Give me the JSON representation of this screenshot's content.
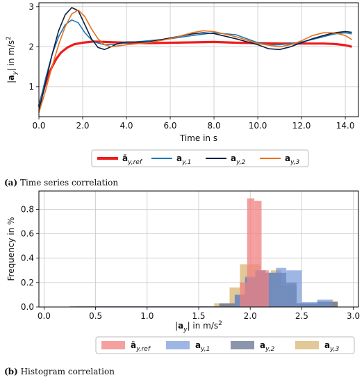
{
  "chart_data": [
    {
      "type": "line",
      "caption_label": "(a)",
      "caption_text": "Time series correlation",
      "xlabel": "Time in s",
      "ylabel": "|a_y| in m/s^2",
      "xlim": [
        0.0,
        14.6
      ],
      "ylim": [
        0.25,
        3.1
      ],
      "xticks": [
        "0.0",
        "2.0",
        "4.0",
        "6.0",
        "8.0",
        "10.0",
        "12.0",
        "14.0"
      ],
      "yticks": [
        "1",
        "2",
        "3"
      ],
      "grid": true,
      "legend_position": "below",
      "series": [
        {
          "name": "ā_y,ref",
          "color": "#ee1c1c",
          "x": [
            0.0,
            0.2,
            0.4,
            0.6,
            0.8,
            1.0,
            1.3,
            1.6,
            2.0,
            2.5,
            3.0,
            3.5,
            4.0,
            5.0,
            6.0,
            7.0,
            8.0,
            9.0,
            10.0,
            11.0,
            12.0,
            13.0,
            13.5,
            14.0,
            14.3
          ],
          "y": [
            0.5,
            0.9,
            1.25,
            1.5,
            1.7,
            1.85,
            1.98,
            2.06,
            2.1,
            2.13,
            2.12,
            2.11,
            2.1,
            2.09,
            2.1,
            2.11,
            2.12,
            2.1,
            2.09,
            2.08,
            2.08,
            2.08,
            2.07,
            2.04,
            2.0
          ]
        },
        {
          "name": "a_y,1",
          "color": "#1f77b4",
          "x": [
            0.0,
            0.3,
            0.6,
            0.9,
            1.2,
            1.5,
            1.8,
            2.1,
            2.5,
            3.0,
            3.5,
            4.0,
            5.0,
            6.0,
            7.0,
            8.0,
            9.0,
            10.0,
            10.5,
            11.0,
            11.5,
            12.0,
            12.5,
            13.0,
            13.5,
            14.0,
            14.3
          ],
          "y": [
            0.5,
            1.2,
            1.8,
            2.25,
            2.55,
            2.67,
            2.6,
            2.35,
            2.12,
            2.05,
            2.06,
            2.1,
            2.15,
            2.2,
            2.28,
            2.35,
            2.3,
            2.1,
            2.05,
            2.05,
            2.08,
            2.12,
            2.18,
            2.25,
            2.32,
            2.35,
            2.32
          ]
        },
        {
          "name": "a_y,2",
          "color": "#0a1f44",
          "x": [
            0.0,
            0.3,
            0.6,
            0.9,
            1.2,
            1.5,
            1.8,
            2.1,
            2.4,
            2.7,
            3.0,
            3.3,
            3.6,
            4.0,
            5.0,
            6.0,
            7.0,
            7.5,
            8.0,
            9.0,
            10.0,
            10.5,
            11.0,
            11.5,
            12.0,
            12.5,
            13.0,
            13.5,
            14.0,
            14.3
          ],
          "y": [
            0.4,
            1.1,
            1.8,
            2.4,
            2.8,
            2.98,
            2.9,
            2.55,
            2.2,
            1.98,
            1.93,
            2.0,
            2.08,
            2.12,
            2.12,
            2.22,
            2.32,
            2.35,
            2.33,
            2.2,
            2.05,
            1.95,
            1.93,
            2.0,
            2.1,
            2.2,
            2.28,
            2.35,
            2.38,
            2.36
          ]
        },
        {
          "name": "a_y,3",
          "color": "#e8701a",
          "x": [
            0.0,
            0.3,
            0.6,
            0.9,
            1.2,
            1.5,
            1.8,
            2.1,
            2.4,
            2.7,
            3.0,
            3.3,
            3.6,
            4.0,
            5.0,
            6.0,
            7.0,
            7.5,
            8.0,
            9.0,
            10.0,
            11.0,
            11.5,
            12.0,
            12.5,
            13.0,
            13.5,
            14.0,
            14.3
          ],
          "y": [
            0.35,
            0.9,
            1.5,
            2.05,
            2.5,
            2.82,
            2.92,
            2.75,
            2.45,
            2.2,
            2.05,
            2.0,
            2.02,
            2.05,
            2.1,
            2.2,
            2.35,
            2.4,
            2.38,
            2.25,
            2.08,
            2.0,
            2.05,
            2.15,
            2.28,
            2.35,
            2.35,
            2.28,
            2.18
          ]
        }
      ]
    },
    {
      "type": "bar",
      "caption_label": "(b)",
      "caption_text": "Histogram correlation",
      "xlabel": "|a_y| in m/s^2",
      "ylabel": "Frequency in %",
      "xlim": [
        -0.05,
        3.05
      ],
      "ylim": [
        0.0,
        0.95
      ],
      "xticks": [
        "0.0",
        "0.5",
        "1.0",
        "1.5",
        "2.0",
        "2.5",
        "3.0"
      ],
      "yticks": [
        "0.0",
        "0.2",
        "0.4",
        "0.6",
        "0.8"
      ],
      "grid": true,
      "legend_position": "below",
      "series": [
        {
          "name": "ā_y,ref",
          "color": "#f08080",
          "opacity": 0.75,
          "bin_edges": [
            1.9,
            1.97,
            2.04,
            2.11,
            2.18
          ],
          "values": [
            0.2,
            0.89,
            0.87,
            0.3
          ]
        },
        {
          "name": "a_y,1",
          "color": "#6a8fd6",
          "opacity": 0.65,
          "bin_edges": [
            0.4,
            1.85,
            1.95,
            2.05,
            2.15,
            2.25,
            2.35,
            2.5,
            2.65,
            2.8
          ],
          "values": [
            0.005,
            0.1,
            0.25,
            0.3,
            0.28,
            0.32,
            0.3,
            0.04,
            0.06
          ]
        },
        {
          "name": "a_y,2",
          "color": "#5a6a8a",
          "opacity": 0.7,
          "bin_edges": [
            0.25,
            1.7,
            1.85,
            1.95,
            2.05,
            2.15,
            2.25,
            2.35,
            2.45,
            2.65,
            2.85
          ],
          "values": [
            0.005,
            0.03,
            0.1,
            0.24,
            0.3,
            0.28,
            0.28,
            0.2,
            0.03,
            0.04
          ]
        },
        {
          "name": "a_y,3",
          "color": "#d6b06a",
          "opacity": 0.7,
          "bin_edges": [
            0.3,
            1.65,
            1.8,
            1.9,
            2.0,
            2.1,
            2.2,
            2.3,
            2.45,
            2.65,
            2.85
          ],
          "values": [
            0.005,
            0.03,
            0.16,
            0.35,
            0.35,
            0.28,
            0.3,
            0.18,
            0.03,
            0.05
          ]
        }
      ]
    }
  ]
}
